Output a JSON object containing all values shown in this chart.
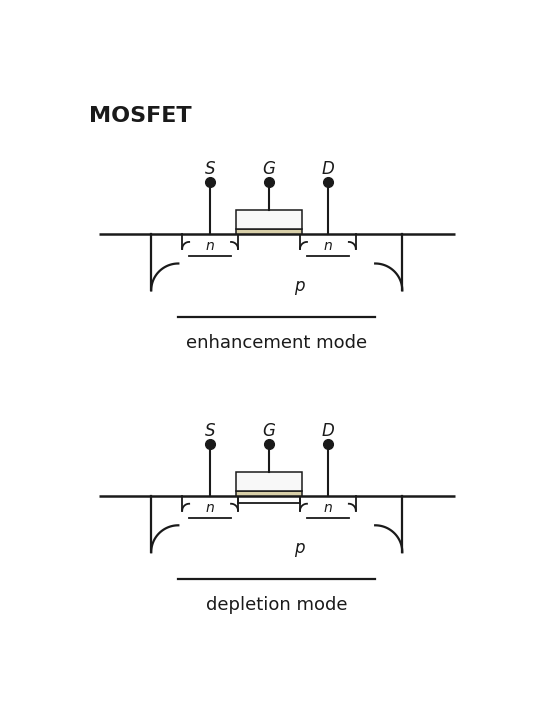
{
  "title": "MOSFET",
  "title_fontsize": 16,
  "title_fontweight": "bold",
  "label_enhancement": "enhancement mode",
  "label_depletion": "depletion mode",
  "label_fontsize": 13,
  "bg_color": "#ffffff",
  "line_color": "#1a1a1a",
  "gate_oxide_color": "#d8cfa8",
  "gate_box_color": "#f8f8f8",
  "dot_size": 7,
  "lw": 1.3,
  "fig_w": 5.4,
  "fig_h": 7.2,
  "dpi": 100
}
